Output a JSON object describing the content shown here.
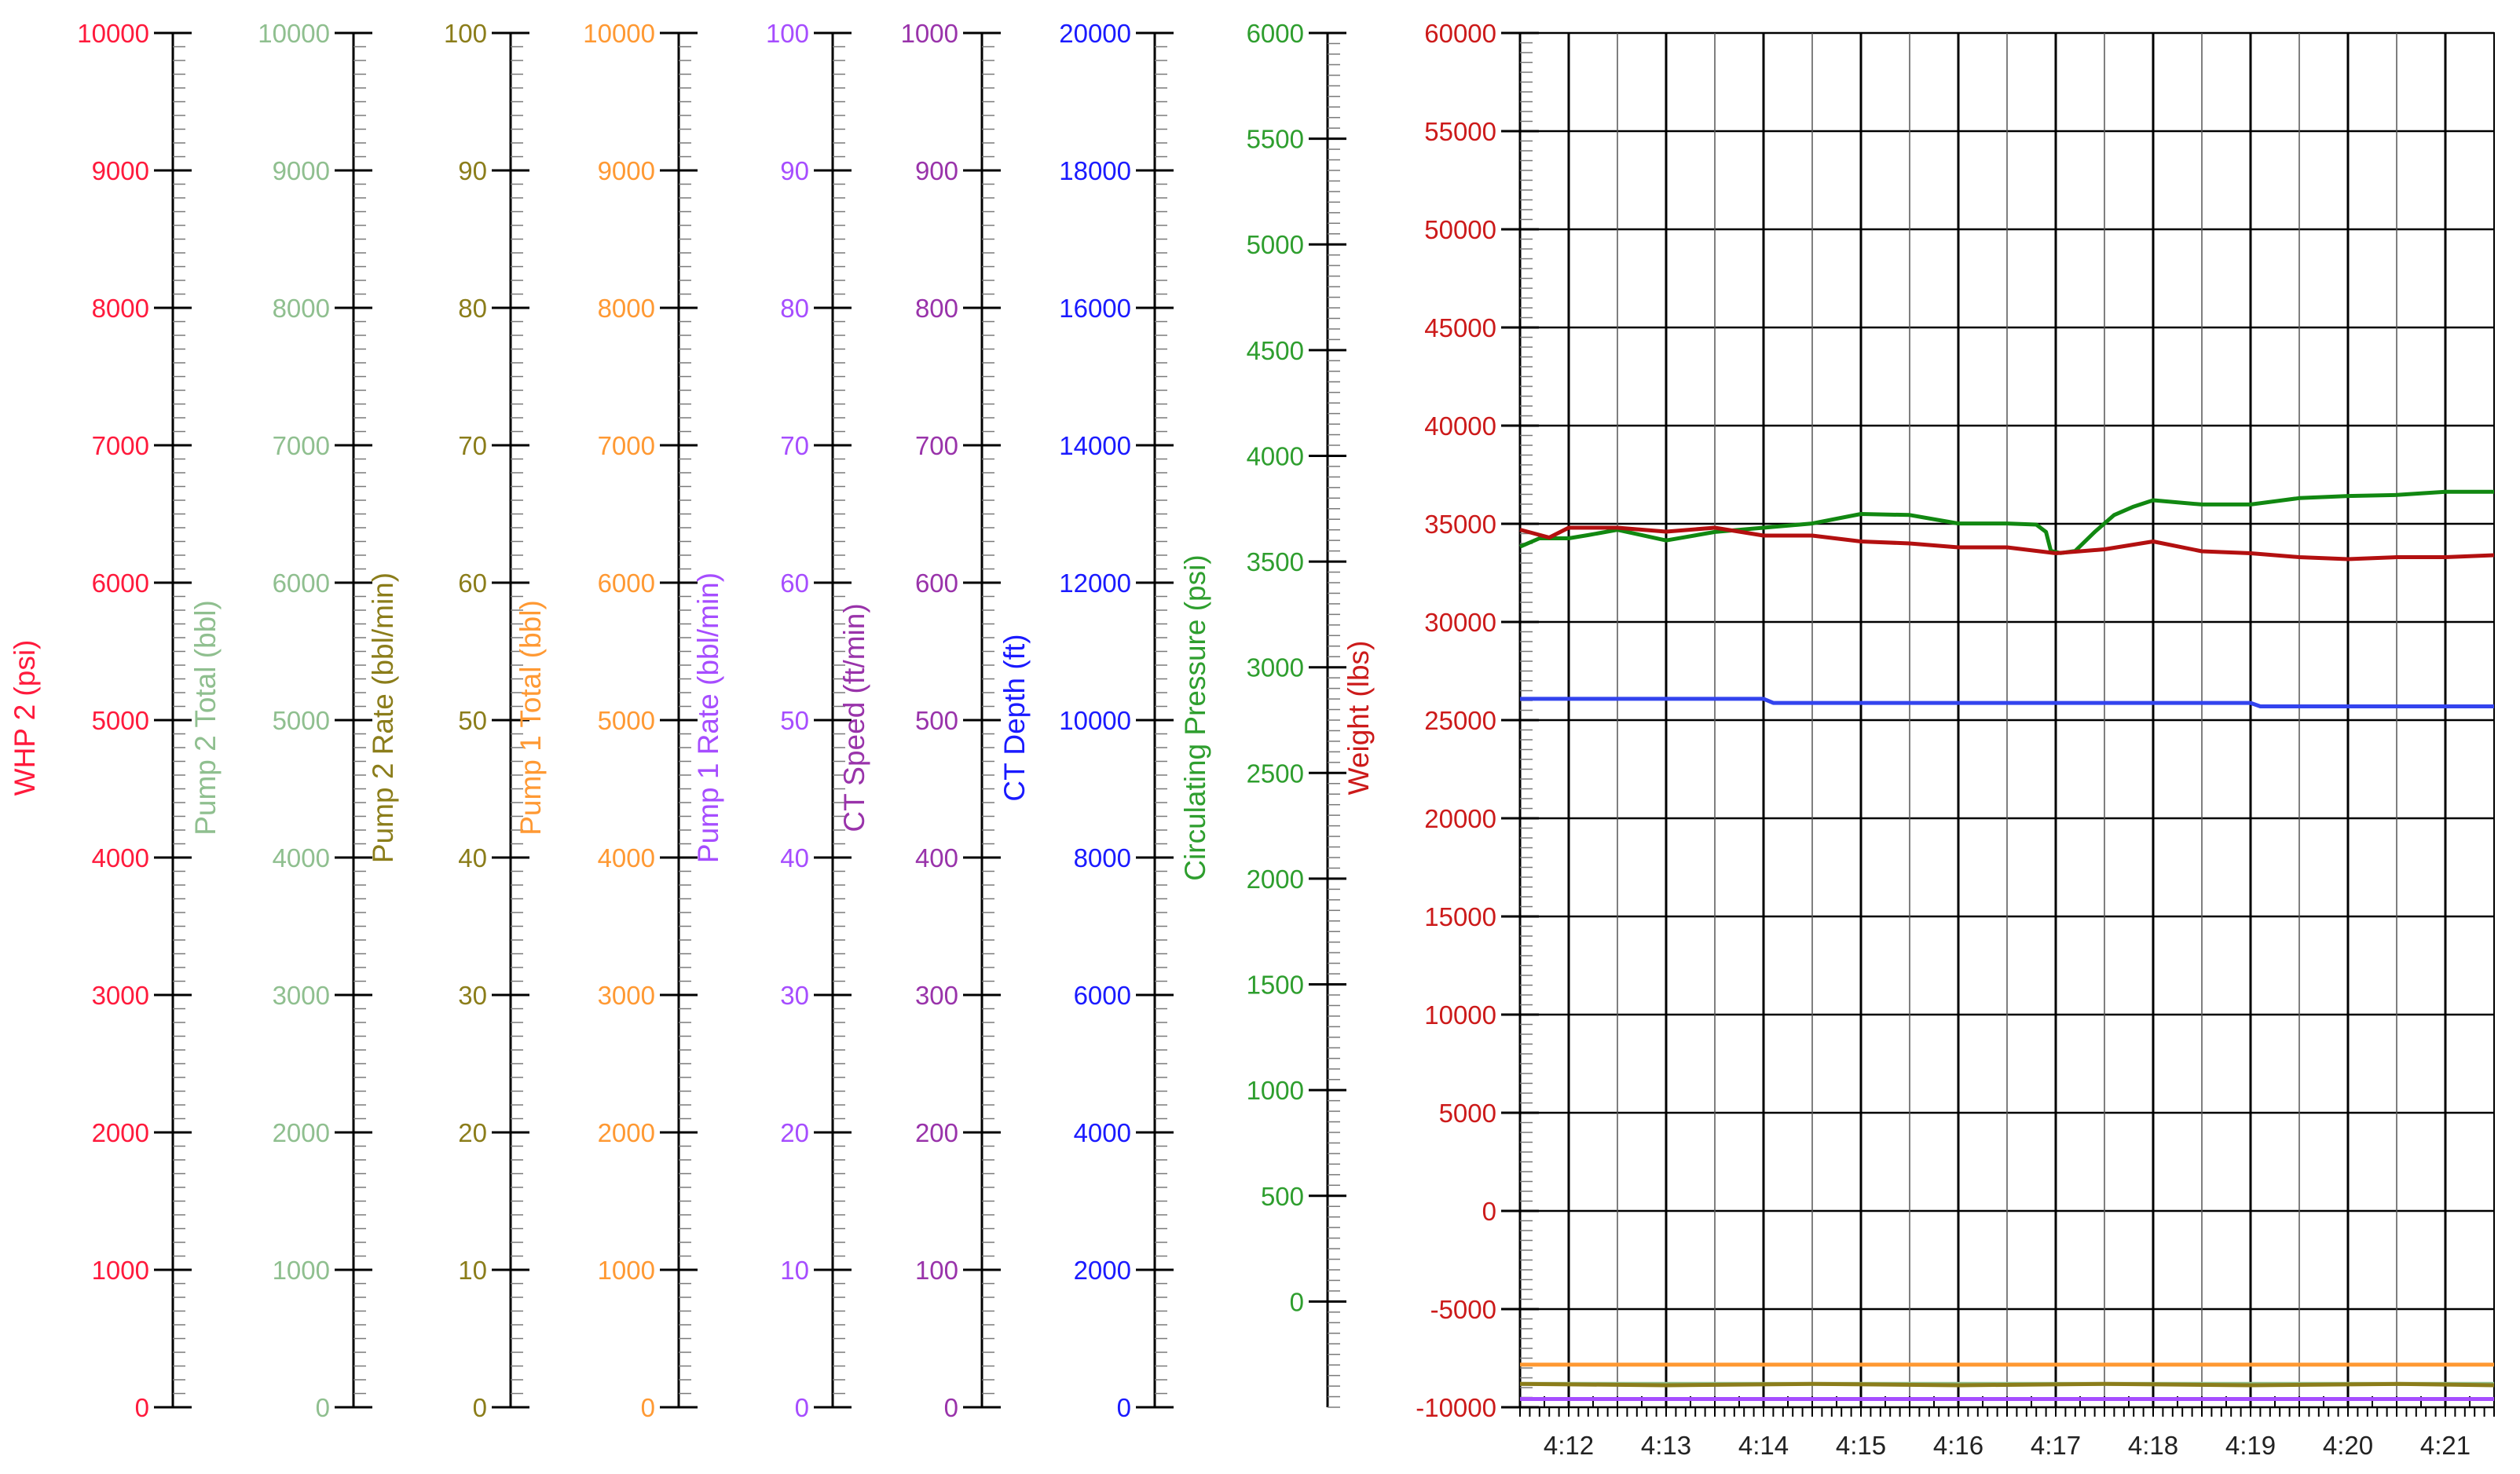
{
  "chart_data": {
    "type": "line",
    "title": "",
    "grid": true,
    "axes": [
      {
        "id": "whp2",
        "label": "WHP 2  (psi)",
        "color": "#ff1a3c",
        "min": 0,
        "max": 10000,
        "major_step": 1000,
        "ticks": [
          "0",
          "1000",
          "2000",
          "3000",
          "4000",
          "5000",
          "6000",
          "7000",
          "8000",
          "9000",
          "10000"
        ]
      },
      {
        "id": "pump2_total",
        "label": "Pump 2 Total  (bbl)",
        "color": "#8fbf8f",
        "min": 0,
        "max": 10000,
        "major_step": 1000,
        "ticks": [
          "0",
          "1000",
          "2000",
          "3000",
          "4000",
          "5000",
          "6000",
          "7000",
          "8000",
          "9000",
          "10000"
        ]
      },
      {
        "id": "pump2_rate",
        "label": "Pump 2  Rate  (bbl/min)",
        "color": "#8b7d1a",
        "min": 0,
        "max": 100,
        "major_step": 10,
        "ticks": [
          "0",
          "10",
          "20",
          "30",
          "40",
          "50",
          "60",
          "70",
          "80",
          "90",
          "100"
        ]
      },
      {
        "id": "pump1_total",
        "label": "Pump 1 Total  (bbl)",
        "color": "#ff9933",
        "min": 0,
        "max": 10000,
        "major_step": 1000,
        "ticks": [
          "0",
          "1000",
          "2000",
          "3000",
          "4000",
          "5000",
          "6000",
          "7000",
          "8000",
          "9000",
          "10000"
        ]
      },
      {
        "id": "pump1_rate",
        "label": "Pump 1 Rate  (bbl/min)",
        "color": "#a64dff",
        "min": 0,
        "max": 100,
        "major_step": 10,
        "ticks": [
          "0",
          "10",
          "20",
          "30",
          "40",
          "50",
          "60",
          "70",
          "80",
          "90",
          "100"
        ]
      },
      {
        "id": "ct_speed",
        "label": "CT Speed  (ft/min)",
        "color": "#9933aa",
        "min": 0,
        "max": 1000,
        "major_step": 100,
        "ticks": [
          "0",
          "100",
          "200",
          "300",
          "400",
          "500",
          "600",
          "700",
          "800",
          "900",
          "1000"
        ]
      },
      {
        "id": "ct_depth",
        "label": "CT Depth  (ft)",
        "color": "#1a1aff",
        "min": 0,
        "max": 20000,
        "major_step": 2000,
        "ticks": [
          "0",
          "2000",
          "4000",
          "6000",
          "8000",
          "10000",
          "12000",
          "14000",
          "16000",
          "18000",
          "20000"
        ]
      },
      {
        "id": "circ_pressure",
        "label": "Circulating Pressure  (psi)",
        "color": "#2e9e2e",
        "min": -500,
        "max": 6000,
        "major_step": 500,
        "ticks": [
          "0",
          "500",
          "1000",
          "1500",
          "2000",
          "2500",
          "3000",
          "3500",
          "4000",
          "4500",
          "5000",
          "5500",
          "6000"
        ]
      },
      {
        "id": "weight",
        "label": "Weight  (lbs)",
        "color": "#cc1a1a",
        "min": -10000,
        "max": 60000,
        "major_step": 5000,
        "ticks": [
          "-10000",
          "-5000",
          "0",
          "5000",
          "10000",
          "15000",
          "20000",
          "25000",
          "30000",
          "35000",
          "40000",
          "45000",
          "50000",
          "55000",
          "60000"
        ]
      }
    ],
    "x": {
      "label": "",
      "min": 4.115,
      "max": 4.215,
      "ticks": [
        {
          "label": "4:12",
          "value": 4.12
        },
        {
          "label": "4:13",
          "value": 4.13
        },
        {
          "label": "4:14",
          "value": 4.14
        },
        {
          "label": "4:15",
          "value": 4.15
        },
        {
          "label": "4:16",
          "value": 4.16
        },
        {
          "label": "4:17",
          "value": 4.17
        },
        {
          "label": "4:18",
          "value": 4.18
        },
        {
          "label": "4:19",
          "value": 4.19
        },
        {
          "label": "4:20",
          "value": 4.2
        },
        {
          "label": "4:21",
          "value": 4.21
        }
      ]
    },
    "series": [
      {
        "axis": "circ_pressure",
        "color": "#118811",
        "x": [
          4.115,
          4.117,
          4.12,
          4.122,
          4.125,
          4.13,
          4.135,
          4.14,
          4.145,
          4.15,
          4.155,
          4.16,
          4.165,
          4.168,
          4.169,
          4.1695,
          4.1705,
          4.172,
          4.174,
          4.176,
          4.178,
          4.18,
          4.185,
          4.19,
          4.195,
          4.2,
          4.205,
          4.21,
          4.215
        ],
        "y": [
          3570,
          3610,
          3610,
          3625,
          3650,
          3600,
          3640,
          3660,
          3680,
          3725,
          3720,
          3680,
          3680,
          3675,
          3640,
          3550,
          3540,
          3550,
          3640,
          3720,
          3760,
          3790,
          3770,
          3770,
          3800,
          3810,
          3815,
          3830,
          3830
        ]
      },
      {
        "axis": "weight",
        "color": "#b31010",
        "x": [
          4.115,
          4.118,
          4.12,
          4.125,
          4.13,
          4.135,
          4.14,
          4.145,
          4.15,
          4.155,
          4.16,
          4.165,
          4.17,
          4.175,
          4.18,
          4.185,
          4.19,
          4.195,
          4.2,
          4.205,
          4.21,
          4.215
        ],
        "y": [
          34700,
          34300,
          34800,
          34800,
          34600,
          34800,
          34400,
          34400,
          34100,
          34000,
          33800,
          33800,
          33500,
          33700,
          34100,
          33600,
          33500,
          33300,
          33200,
          33300,
          33300,
          33400
        ]
      },
      {
        "axis": "ct_depth",
        "color": "#3344ee",
        "x": [
          4.115,
          4.13,
          4.14,
          4.141,
          4.16,
          4.18,
          4.19,
          4.191,
          4.215
        ],
        "y": [
          10310,
          10310,
          10310,
          10250,
          10250,
          10250,
          10250,
          10200,
          10200
        ]
      },
      {
        "axis": "pump1_total",
        "color": "#ff9933",
        "x": [
          4.115,
          4.215
        ],
        "y": [
          310,
          310
        ]
      },
      {
        "axis": "pump2_total",
        "color": "#8fbf8f",
        "x": [
          4.115,
          4.215
        ],
        "y": [
          170,
          170
        ]
      },
      {
        "axis": "pump2_rate",
        "color": "#8b7d1a",
        "x": [
          4.115,
          4.13,
          4.145,
          4.16,
          4.175,
          4.19,
          4.205,
          4.215
        ],
        "y": [
          1.7,
          1.6,
          1.7,
          1.6,
          1.7,
          1.6,
          1.7,
          1.6
        ]
      },
      {
        "axis": "pump1_rate",
        "color": "#a64dff",
        "x": [
          4.115,
          4.215
        ],
        "y": [
          0.6,
          0.6
        ]
      }
    ]
  }
}
